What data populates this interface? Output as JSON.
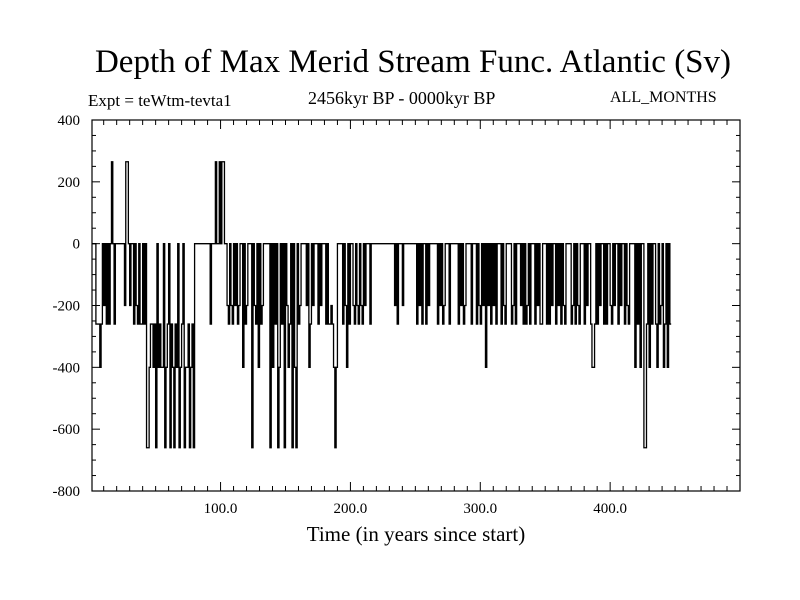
{
  "chart_data": {
    "type": "line",
    "title": "Depth of Max Merid Stream Func. Atlantic (Sv)",
    "subtitle": "2456kyr BP - 0000kyr BP",
    "experiment_label": "Expt = teWtm-tevta1",
    "period_label": "ALL_MONTHS",
    "xlabel": "Time (in years since start)",
    "ylabel": "",
    "xlim": [
      1,
      500
    ],
    "ylim": [
      -800,
      400
    ],
    "x_ticks": [
      100,
      200,
      300,
      400
    ],
    "x_tick_labels": [
      "100.0",
      "200.0",
      "300.0",
      "400.0"
    ],
    "y_ticks": [
      -800,
      -600,
      -400,
      -200,
      0,
      200,
      400
    ],
    "y_tick_labels": [
      "-800",
      "-600",
      "-400",
      "-200",
      "0",
      "200",
      "400"
    ],
    "grid": false,
    "series": [
      {
        "values": [
          0,
          0,
          0,
          -260,
          -260,
          -260,
          -400,
          -260,
          0,
          -200,
          0,
          -260,
          0,
          -260,
          0,
          265,
          0,
          -260,
          0,
          0,
          0,
          0,
          0,
          0,
          0,
          -200,
          265,
          265,
          0,
          -200,
          0,
          0,
          -260,
          0,
          -200,
          -260,
          0,
          -260,
          -260,
          0,
          -260,
          0,
          -660,
          -660,
          -400,
          -260,
          -260,
          -400,
          -260,
          -660,
          0,
          -400,
          -260,
          -400,
          -400,
          0,
          -660,
          -400,
          -260,
          0,
          -660,
          -260,
          -400,
          -660,
          -260,
          -400,
          0,
          -660,
          -400,
          -260,
          0,
          -660,
          -400,
          -400,
          -260,
          -660,
          -400,
          -260,
          -660,
          0,
          0,
          0,
          0,
          0,
          0,
          0,
          0,
          0,
          0,
          0,
          0,
          -260,
          0,
          0,
          0,
          265,
          0,
          0,
          265,
          0,
          265,
          265,
          0,
          0,
          -200,
          -260,
          0,
          -200,
          -260,
          0,
          -200,
          0,
          -260,
          -200,
          0,
          0,
          -400,
          0,
          -260,
          -200,
          0,
          0,
          0,
          -660,
          0,
          -200,
          -260,
          0,
          -400,
          0,
          -260,
          -200,
          0,
          0,
          0,
          0,
          0,
          -660,
          0,
          -400,
          0,
          -260,
          0,
          -660,
          -400,
          0,
          -260,
          0,
          -660,
          0,
          -200,
          -400,
          -260,
          0,
          -660,
          0,
          -400,
          -660,
          0,
          -260,
          -200,
          0,
          0,
          0,
          0,
          -200,
          0,
          -400,
          -260,
          0,
          -200,
          0,
          0,
          0,
          -260,
          0,
          -200,
          0,
          0,
          0,
          -260,
          0,
          -260,
          -260,
          -200,
          -260,
          -400,
          -660,
          -400,
          0,
          0,
          0,
          0,
          -260,
          0,
          -200,
          -400,
          0,
          -260,
          0,
          0,
          -200,
          -260,
          0,
          -200,
          -260,
          0,
          -200,
          -260,
          0,
          -200,
          0,
          0,
          0,
          -260,
          0,
          0,
          0,
          0,
          0,
          0,
          0,
          0,
          0,
          0,
          0,
          0,
          0,
          0,
          0,
          0,
          0,
          0,
          -200,
          0,
          -260,
          0,
          0,
          0,
          -200,
          0,
          0,
          0,
          0,
          0,
          0,
          0,
          0,
          0,
          0,
          -260,
          0,
          -200,
          0,
          -260,
          0,
          0,
          -260,
          0,
          -200,
          0,
          0,
          0,
          0,
          0,
          0,
          -260,
          0,
          -200,
          0,
          -260,
          -200,
          0,
          0,
          0,
          -260,
          0,
          0,
          0,
          0,
          0,
          0,
          -260,
          0,
          -200,
          0,
          -260,
          -200,
          0,
          0,
          0,
          0,
          -260,
          0,
          0,
          0,
          -260,
          0,
          -200,
          -260,
          0,
          -200,
          0,
          -400,
          0,
          -200,
          0,
          -260,
          0,
          -200,
          0,
          -260,
          0,
          0,
          0,
          -260,
          0,
          -200,
          -260,
          0,
          0,
          0,
          0,
          -260,
          -200,
          0,
          -260,
          0,
          0,
          0,
          -200,
          0,
          -260,
          0,
          -260,
          -200,
          0,
          -260,
          0,
          0,
          0,
          -260,
          0,
          -200,
          0,
          -260,
          -260,
          0,
          0,
          0,
          -260,
          0,
          -260,
          0,
          -200,
          0,
          0,
          -260,
          0,
          -200,
          0,
          -260,
          0,
          -200,
          -260,
          0,
          0,
          0,
          0,
          -260,
          -200,
          0,
          -260,
          0,
          -200,
          -260,
          0,
          0,
          0,
          -260,
          0,
          -200,
          0,
          0,
          -260,
          -400,
          -400,
          -260,
          0,
          -260,
          0,
          -200,
          0,
          0,
          -260,
          0,
          -260,
          0,
          0,
          -200,
          -260,
          0,
          -200,
          0,
          0,
          -260,
          0,
          -200,
          0,
          0,
          -260,
          0,
          -200,
          -260,
          0,
          0,
          0,
          0,
          -400,
          0,
          -260,
          0,
          -400,
          0,
          0,
          -660,
          -660,
          -260,
          0,
          -400,
          0,
          -260,
          0,
          0,
          -260,
          -400,
          0,
          -260,
          -200,
          0,
          -400,
          -260,
          0,
          -400,
          0,
          -260
        ]
      }
    ]
  }
}
